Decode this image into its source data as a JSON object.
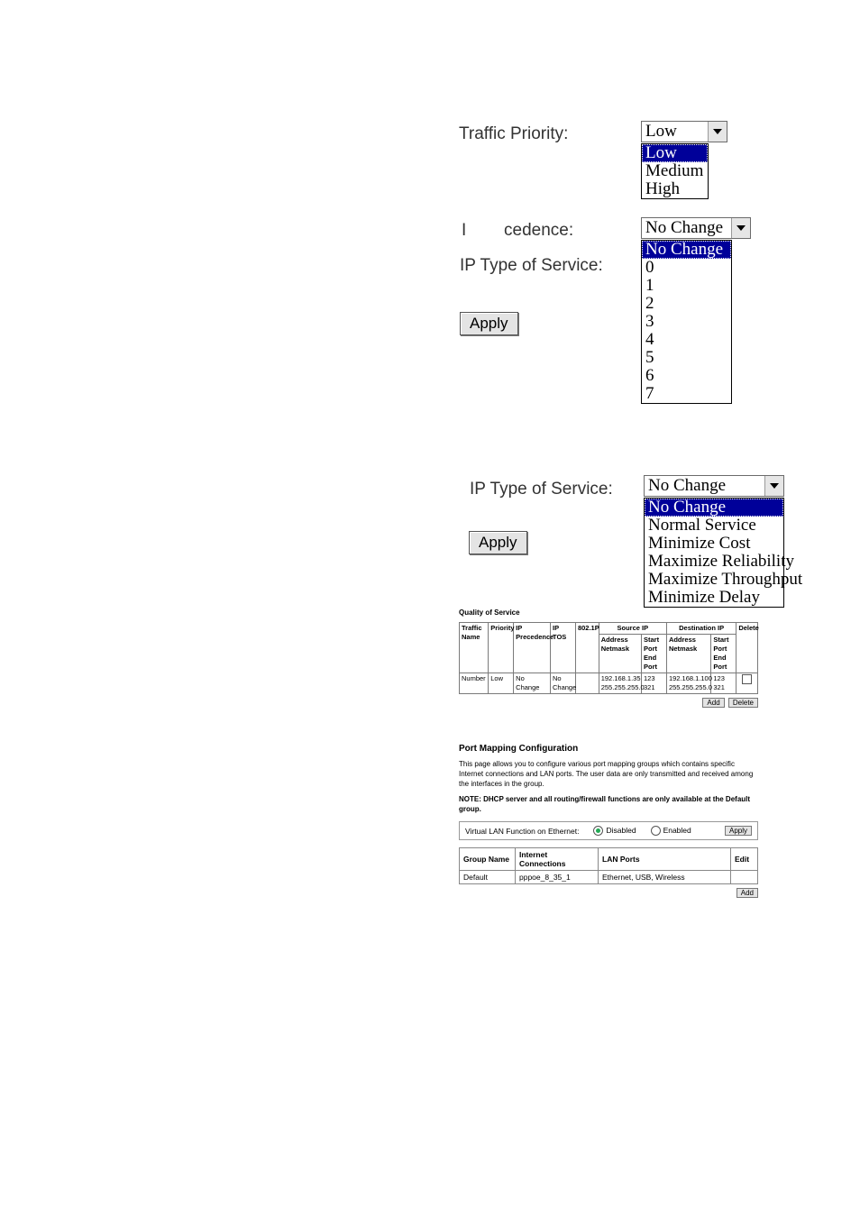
{
  "section1": {
    "traffic_priority_label": "Traffic Priority:",
    "traffic_priority_value": "Low",
    "traffic_priority_options": [
      "Low",
      "Medium",
      "High"
    ],
    "traffic_priority_selected_index": 0,
    "ip_precedence_label_part1": "I",
    "ip_precedence_label_part2": "cedence:",
    "ip_precedence_value": "No Change",
    "ip_precedence_options": [
      "No Change",
      "0",
      "1",
      "2",
      "3",
      "4",
      "5",
      "6",
      "7"
    ],
    "ip_precedence_selected_index": 0,
    "ip_tos_label": "IP Type of Service:",
    "apply_label": "Apply"
  },
  "section2": {
    "ip_tos_label": "IP Type of Service:",
    "ip_tos_value": "No Change",
    "ip_tos_options": [
      "No Change",
      "Normal Service",
      "Minimize Cost",
      "Maximize Reliability",
      "Maximize Throughput",
      "Minimize Delay"
    ],
    "ip_tos_selected_index": 0,
    "apply_label": "Apply"
  },
  "qos": {
    "title": "Quality of Service",
    "cols": {
      "traffic_name": "Traffic Name",
      "priority": "Priority",
      "ip_precedence": "IP Precedence",
      "ip_tos": "IP TOS",
      "p8021": "802.1P",
      "source_ip": "Source IP",
      "address": "Address",
      "netmask": "Netmask",
      "start_port": "Start Port",
      "end_port": "End Port",
      "dest_ip": "Destination IP",
      "delete": "Delete"
    },
    "row": {
      "traffic_name": "Number",
      "priority": "Low",
      "ip_precedence": "No Change",
      "ip_tos": "No Change",
      "p8021": "",
      "src_addr": "192.168.1.35",
      "src_mask": "255.255.255.0",
      "src_start": "123",
      "src_end": "321",
      "dst_addr": "192.168.1.100",
      "dst_mask": "255.255.255.0",
      "dst_start": "123",
      "dst_end": "321"
    },
    "add_label": "Add",
    "delete_label": "Delete"
  },
  "pm": {
    "title": "Port Mapping Configuration",
    "desc": "This page allows you to configure various port mapping groups which contains specific Internet connections and LAN ports. The user data are only transmitted and received among the interfaces in the group.",
    "note": "NOTE: DHCP server and all routing/firewall functions are only available at the Default group.",
    "vlan_label": "Virtual LAN Function on Ethernet:",
    "disabled_label": "Disabled",
    "enabled_label": "Enabled",
    "apply_label": "Apply",
    "cols": {
      "group_name": "Group Name",
      "internet": "Internet Connections",
      "lan": "LAN Ports",
      "edit": "Edit"
    },
    "row": {
      "group_name": "Default",
      "internet": "pppoe_8_35_1",
      "lan": "Ethernet, USB, Wireless"
    },
    "add_label": "Add"
  },
  "style": {
    "highlight_bg": "#000099",
    "highlight_fg": "#ffffff",
    "border_color": "#6b6b6b",
    "button_bg": "#e4e4e4"
  }
}
